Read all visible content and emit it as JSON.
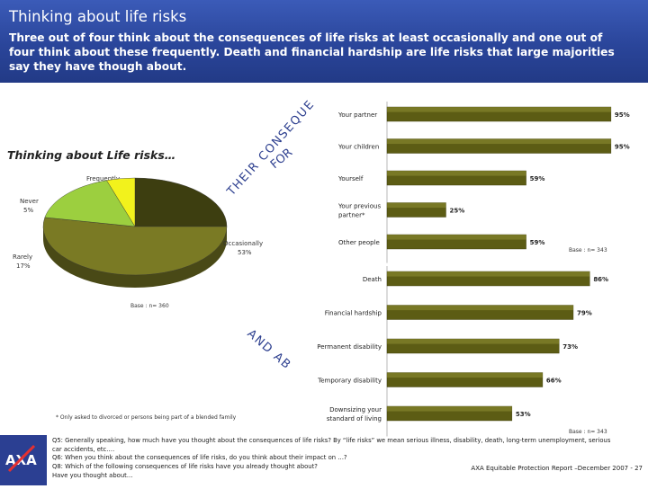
{
  "header": {
    "title": "Thinking about life risks",
    "intro": "Three out of four think about the consequences of life risks at least occasionally and one out of four think about these frequently.  Death and financial hardship are life risks that large majorities say they have though about."
  },
  "left_heading": "Thinking about Life risks…",
  "arc_label_1": "THEIR CONSEQUENCES",
  "arc_label_2": "FOR",
  "arc_label_3": "AND ABOUT",
  "footnote": "* Only asked to divorced or persons being part of a blended family",
  "colors": {
    "bar": "#5c5c14",
    "bar_light": "#8a8a30",
    "pie_freq": "#3d3e10",
    "pie_occ": "#7a7a24",
    "pie_rarely": "#9ccf3f",
    "pie_never": "#f2f21c",
    "header": "#2a459a"
  },
  "chart_data": [
    {
      "type": "pie",
      "title": "Thinking about Life risks…",
      "slices": [
        {
          "label": "Frequently",
          "value": 25,
          "value_label": "25%",
          "color": "#3d3e10"
        },
        {
          "label": "Occasionally",
          "value": 53,
          "value_label": "53%",
          "color": "#7a7a24"
        },
        {
          "label": "Rarely",
          "value": 17,
          "value_label": "17%",
          "color": "#9ccf3f"
        },
        {
          "label": "Never",
          "value": 5,
          "value_label": "5%",
          "color": "#f2f21c"
        }
      ],
      "base": "Base : n= 360"
    },
    {
      "type": "bar",
      "orientation": "horizontal",
      "group_label": "THEIR CONSEQUENCES FOR",
      "categories": [
        "Your partner",
        "Your children",
        "Yourself",
        "Your previous partner*",
        "Other people"
      ],
      "values": [
        95,
        95,
        59,
        25,
        59
      ],
      "value_labels": [
        "95%",
        "95%",
        "59%",
        "25%",
        "59%"
      ],
      "xlim": [
        0,
        100
      ],
      "base": "Base : n= 343"
    },
    {
      "type": "bar",
      "orientation": "horizontal",
      "group_label": "AND ABOUT",
      "categories": [
        "Death",
        "Financial hardship",
        "Permanent disability",
        "Temporary disability",
        "Downsizing your standard of living"
      ],
      "values": [
        86,
        79,
        73,
        66,
        53
      ],
      "value_labels": [
        "86%",
        "79%",
        "73%",
        "66%",
        "53%"
      ],
      "xlim": [
        0,
        100
      ],
      "base": "Base : n= 343"
    }
  ],
  "footer": {
    "q5": "Q5: Generally speaking, how much have you thought about the consequences of life risks? By “life risks” we mean serious illness, disability, death, long-term unemployment, serious",
    "q5_cont": "car accidents, etc.…",
    "q6": "Q6: When you think about the consequences of life risks, do you think about their impact on …?",
    "q8": "Q8: Which of the following consequences of life risks have you already thought about?",
    "q8_cont": "Have you thought about…",
    "report": "AXA Equitable Protection Report –December  2007 - 27"
  }
}
